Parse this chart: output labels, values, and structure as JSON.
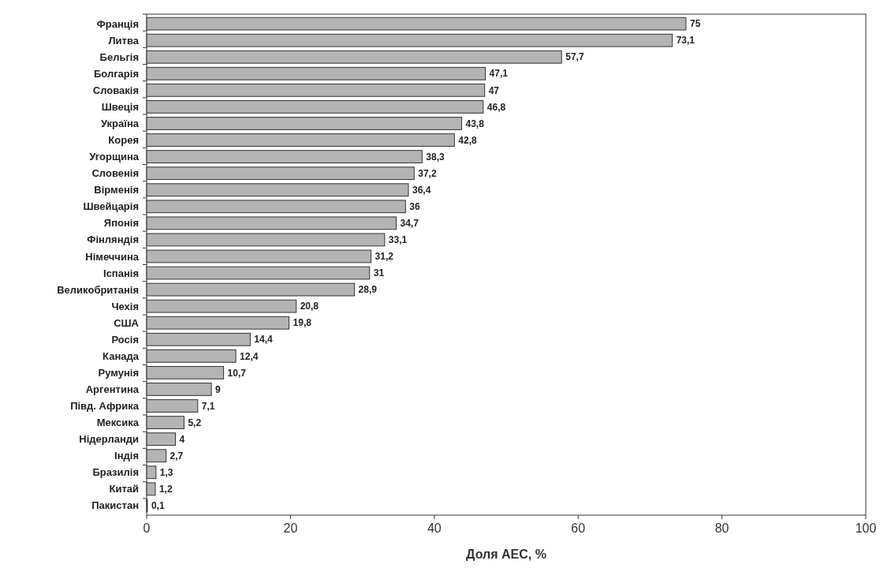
{
  "chart_data": {
    "type": "bar",
    "orientation": "horizontal",
    "xlabel": "Доля АЕС, %",
    "categories": [
      "Франція",
      "Литва",
      "Бельгія",
      "Болгарія",
      "Словакія",
      "Швеція",
      "Україна",
      "Корея",
      "Угорщина",
      "Словенія",
      "Вірменія",
      "Швейцарія",
      "Японія",
      "Фінляндія",
      "Німеччина",
      "Іспанія",
      "Великобританія",
      "Чехія",
      "США",
      "Росія",
      "Канада",
      "Румунія",
      "Аргентина",
      "Півд. Африка",
      "Мексика",
      "Нідерланди",
      "Індія",
      "Бразилія",
      "Китай",
      "Пакистан"
    ],
    "values": [
      75,
      73.1,
      57.7,
      47.1,
      47,
      46.8,
      43.8,
      42.8,
      38.3,
      37.2,
      36.4,
      36,
      34.7,
      33.1,
      31.2,
      31,
      28.9,
      20.8,
      19.8,
      14.4,
      12.4,
      10.7,
      9,
      7.1,
      5.2,
      4,
      2.7,
      1.3,
      1.2,
      0.1
    ],
    "value_labels": [
      "75",
      "73,1",
      "57,7",
      "47,1",
      "47",
      "46,8",
      "43,8",
      "42,8",
      "38,3",
      "37,2",
      "36,4",
      "36",
      "34,7",
      "33,1",
      "31,2",
      "31",
      "28,9",
      "20,8",
      "19,8",
      "14,4",
      "12,4",
      "10,7",
      "9",
      "7,1",
      "5,2",
      "4",
      "2,7",
      "1,3",
      "1,2",
      "0,1"
    ],
    "color": "#b4b4b4",
    "xlim": [
      0,
      100
    ],
    "xticks": [
      0,
      20,
      40,
      60,
      80,
      100
    ],
    "grid": false
  }
}
